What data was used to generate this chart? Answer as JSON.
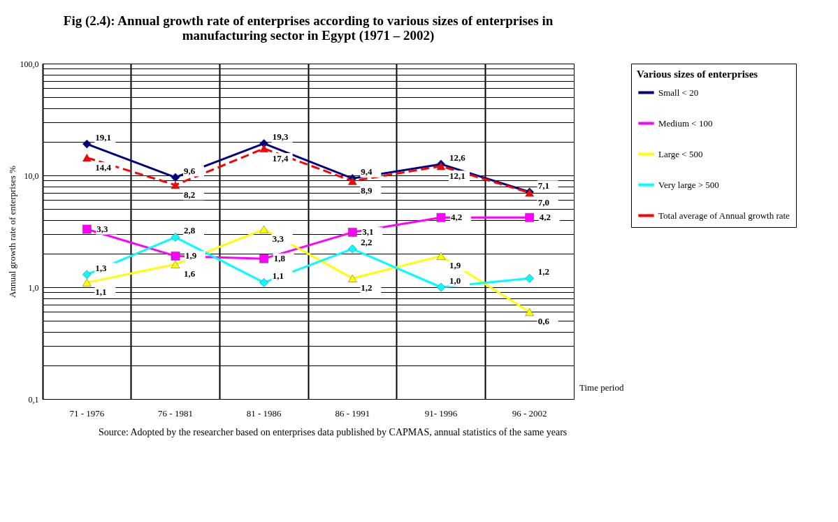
{
  "chart_data": {
    "type": "line",
    "title": [
      "Fig (2.4): Annual growth rate of enterprises according to various sizes of enterprises in",
      "manufacturing sector in Egypt (1971 – 2002)"
    ],
    "ylabel": "Annual growth rate of enterprises %",
    "xlabel": "Time period",
    "legend_title": "Various sizes of enterprises",
    "legend": "right",
    "grid": true,
    "log": true,
    "categories": [
      "71 - 1976",
      "76 - 1981",
      "81 - 1986",
      "86 - 1991",
      "91- 1996",
      "96 - 2002"
    ],
    "ylim": [
      0.1,
      100
    ],
    "yticks": [
      {
        "value": 0.1,
        "label": "0,1"
      },
      {
        "value": 0.2,
        "label": null
      },
      {
        "value": 0.3,
        "label": null
      },
      {
        "value": 0.4,
        "label": null
      },
      {
        "value": 0.5,
        "label": null
      },
      {
        "value": 0.6,
        "label": null
      },
      {
        "value": 0.7,
        "label": null
      },
      {
        "value": 0.8,
        "label": null
      },
      {
        "value": 0.9,
        "label": null
      },
      {
        "value": 1,
        "label": "1,0"
      },
      {
        "value": 2,
        "label": null
      },
      {
        "value": 3,
        "label": null
      },
      {
        "value": 4,
        "label": null
      },
      {
        "value": 5,
        "label": null
      },
      {
        "value": 6,
        "label": null
      },
      {
        "value": 7,
        "label": null
      },
      {
        "value": 8,
        "label": null
      },
      {
        "value": 9,
        "label": null
      },
      {
        "value": 10,
        "label": "10,0"
      },
      {
        "value": 20,
        "label": null
      },
      {
        "value": 30,
        "label": null
      },
      {
        "value": 40,
        "label": null
      },
      {
        "value": 50,
        "label": null
      },
      {
        "value": 60,
        "label": null
      },
      {
        "value": 70,
        "label": null
      },
      {
        "value": 80,
        "label": null
      },
      {
        "value": 90,
        "label": null
      },
      {
        "value": 100,
        "label": "100,0"
      }
    ],
    "series": [
      {
        "name": "Small < 20",
        "color": "#000080",
        "marker": "diamond",
        "values": [
          19.1,
          9.6,
          19.3,
          9.4,
          12.6,
          7.1
        ],
        "value_labels": [
          "19,1",
          "9,6",
          "19,3",
          "9,4",
          "12,6",
          "7,1"
        ]
      },
      {
        "name": "Medium < 100",
        "color": "#ff00ff",
        "marker": "square",
        "values": [
          3.3,
          1.9,
          1.8,
          3.1,
          4.2,
          4.2
        ],
        "value_labels": [
          "3,3",
          "1,9",
          "1,8",
          "3,1",
          "4,2",
          "4,2"
        ]
      },
      {
        "name": "Large < 500",
        "color": "#ffff00",
        "marker": "triangle",
        "values": [
          1.1,
          1.6,
          3.3,
          1.2,
          1.9,
          0.6
        ],
        "value_labels": [
          "1,1",
          "1,6",
          "3,3",
          "1,2",
          "1,9",
          "0,6"
        ]
      },
      {
        "name": "Very large > 500",
        "color": "#00ffff",
        "marker": "diamond",
        "values": [
          1.3,
          2.8,
          1.1,
          2.2,
          1.0,
          1.2
        ],
        "value_labels": [
          "1,3",
          "2,8",
          "1,1",
          "2,2",
          "1,0",
          "1,2"
        ]
      },
      {
        "name": "Total average of Annual growth rate",
        "color": "#ff0000",
        "line_style": "dashed",
        "marker": "triangle",
        "values": [
          14.4,
          8.2,
          17.4,
          8.9,
          12.1,
          7.0
        ],
        "value_labels": [
          "14,4",
          "8,2",
          "17,4",
          "8,9",
          "12,1",
          "7,0"
        ]
      }
    ],
    "annotations": [
      "Source: Adopted by the researcher based on enterprises data published by CAPMAS, annual statistics of the same years"
    ]
  }
}
